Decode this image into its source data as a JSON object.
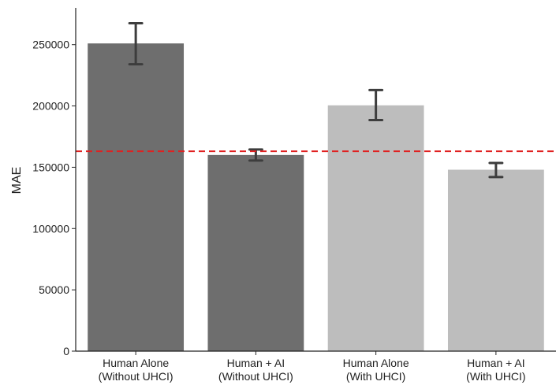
{
  "chart_data": {
    "type": "bar",
    "ylabel": "MAE",
    "xlabel": "",
    "ylim": [
      0,
      280000
    ],
    "yticks": [
      0,
      50000,
      100000,
      150000,
      200000,
      250000
    ],
    "categories": [
      [
        "Human Alone",
        "(Without UHCI)"
      ],
      [
        "Human + AI",
        "(Without UHCI)"
      ],
      [
        "Human Alone",
        "(With UHCI)"
      ],
      [
        "Human + AI",
        "(With UHCI)"
      ]
    ],
    "values": [
      251000,
      160000,
      200500,
      148000
    ],
    "error_low": [
      234000,
      155500,
      188500,
      142000
    ],
    "error_high": [
      267500,
      164500,
      213000,
      153500
    ],
    "bar_colors": [
      "#6e6e6e",
      "#6e6e6e",
      "#bdbdbd",
      "#bdbdbd"
    ],
    "reference_line": {
      "value": 163000,
      "color": "#e02020",
      "style": "dashed"
    },
    "grid": false
  }
}
